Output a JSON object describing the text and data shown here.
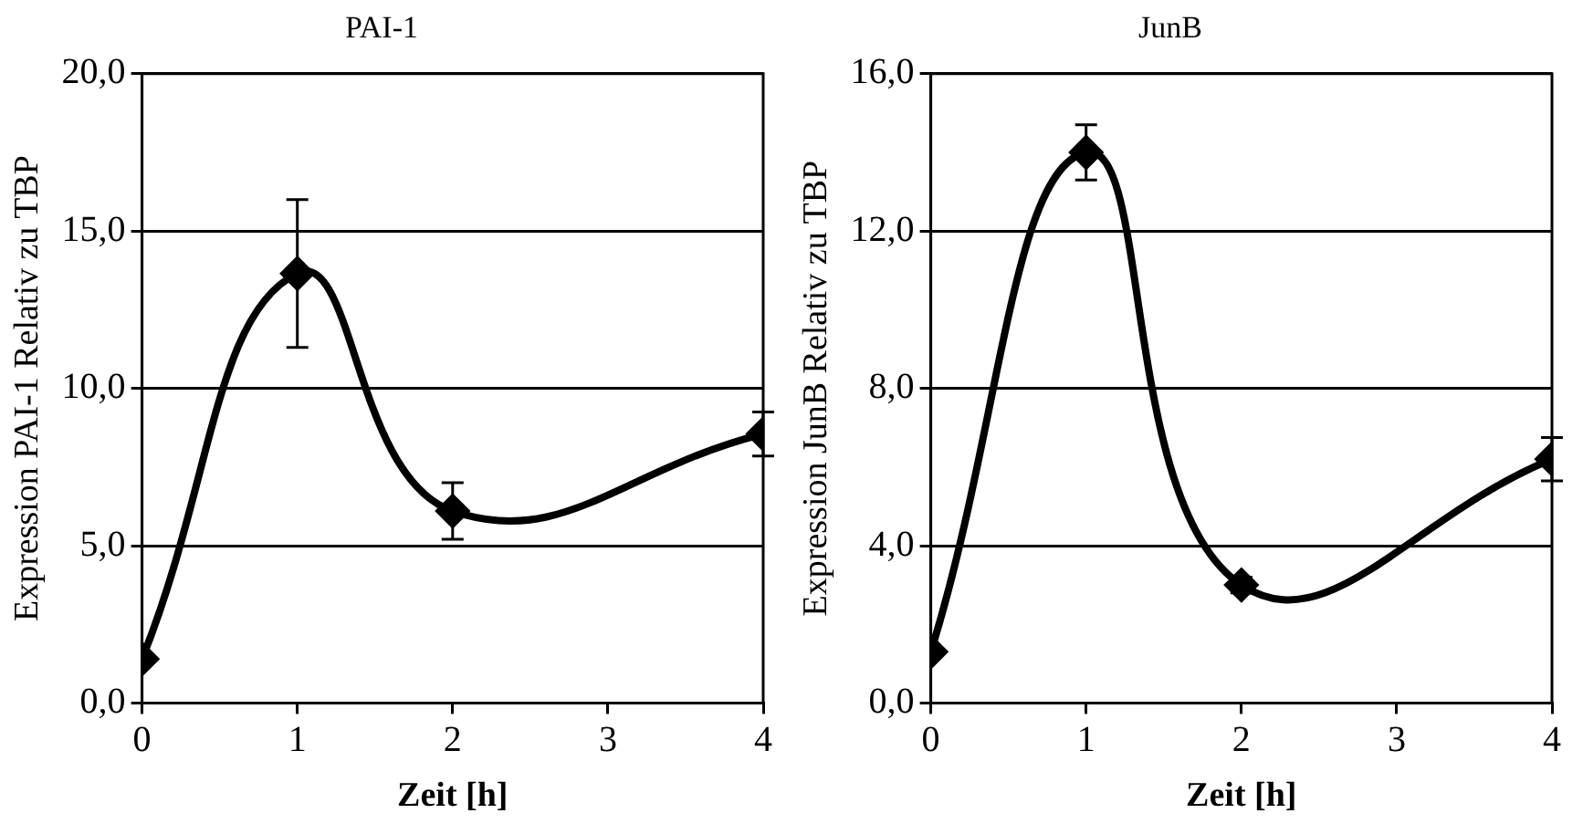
{
  "chart_data": [
    {
      "type": "line",
      "title": "PAI-1",
      "xlabel": "Zeit [h]",
      "ylabel": "Expression PAI-1 Relativ zu TBP",
      "x": [
        0,
        1,
        2,
        4
      ],
      "series": [
        {
          "color": "#000000",
          "values": [
            1.4,
            13.65,
            6.1,
            8.55
          ],
          "errors": [
            null,
            2.35,
            0.9,
            0.7
          ]
        }
      ],
      "xlim": [
        0,
        4
      ],
      "xticks": [
        0,
        1,
        2,
        3,
        4
      ],
      "ylim": [
        0,
        20
      ],
      "yticks": [
        {
          "value": 0,
          "label": "0,0"
        },
        {
          "value": 5,
          "label": "5,0"
        },
        {
          "value": 10,
          "label": "10,0"
        },
        {
          "value": 15,
          "label": "15,0"
        },
        {
          "value": 20,
          "label": "20,0"
        }
      ],
      "grid": "y",
      "marker": "diamond",
      "legend": false
    },
    {
      "type": "line",
      "title": "JunB",
      "xlabel": "Zeit [h]",
      "ylabel": "Expression JunB Relativ zu TBP",
      "x": [
        0,
        1,
        2,
        4
      ],
      "series": [
        {
          "color": "#000000",
          "values": [
            1.3,
            14.0,
            3.0,
            6.2
          ],
          "errors": [
            null,
            0.7,
            0.2,
            0.55
          ]
        }
      ],
      "xlim": [
        0,
        4
      ],
      "xticks": [
        0,
        1,
        2,
        3,
        4
      ],
      "ylim": [
        0,
        16
      ],
      "yticks": [
        {
          "value": 0,
          "label": "0,0"
        },
        {
          "value": 4,
          "label": "4,0"
        },
        {
          "value": 8,
          "label": "8,0"
        },
        {
          "value": 12,
          "label": "12,0"
        },
        {
          "value": 16,
          "label": "16,0"
        }
      ],
      "grid": "y",
      "marker": "diamond",
      "legend": false
    }
  ]
}
